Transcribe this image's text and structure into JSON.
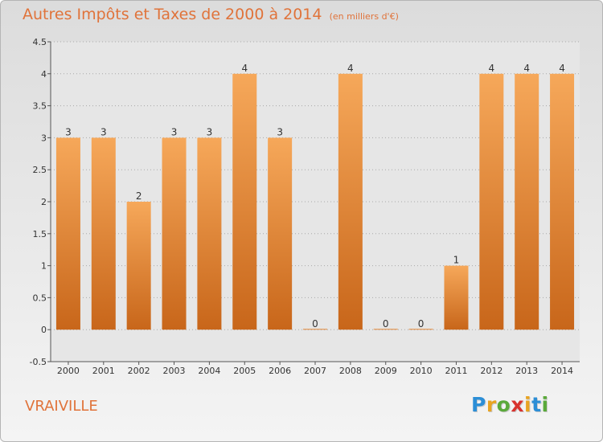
{
  "header": {
    "title": "Autres Impôts et Taxes de 2000 à 2014",
    "unit": "(en milliers d'€)"
  },
  "footer": {
    "place": "VRAIVILLE",
    "logo": "Proxiti"
  },
  "chart_data": {
    "type": "bar",
    "title": "Autres Impôts et Taxes de 2000 à 2014",
    "subtitle": "(en milliers d'€)",
    "xlabel": "",
    "ylabel": "",
    "categories": [
      "2000",
      "2001",
      "2002",
      "2003",
      "2004",
      "2005",
      "2006",
      "2007",
      "2008",
      "2009",
      "2010",
      "2011",
      "2012",
      "2013",
      "2014"
    ],
    "values": [
      3,
      3,
      2,
      3,
      3,
      4,
      3,
      0,
      4,
      0,
      0,
      1,
      4,
      4,
      4
    ],
    "data_labels": [
      "3",
      "3",
      "2",
      "3",
      "3",
      "4",
      "3",
      "0",
      "4",
      "0",
      "0",
      "1",
      "4",
      "4",
      "4"
    ],
    "ylim": [
      -0.5,
      4.5
    ],
    "yticks": [
      -0.5,
      0,
      0.5,
      1,
      1.5,
      2,
      2.5,
      3,
      3.5,
      4,
      4.5
    ],
    "ytick_labels": [
      "-0.5",
      "0",
      "0.5",
      "1",
      "1.5",
      "2",
      "2.5",
      "3",
      "3.5",
      "4",
      "4.5"
    ],
    "grid": "horizontal-dotted",
    "legend": "none",
    "colors": {
      "bar_light": "#f6a85a",
      "bar_dark": "#c8661a",
      "title": "#e0733a",
      "grid": "#a9a9a9"
    }
  }
}
